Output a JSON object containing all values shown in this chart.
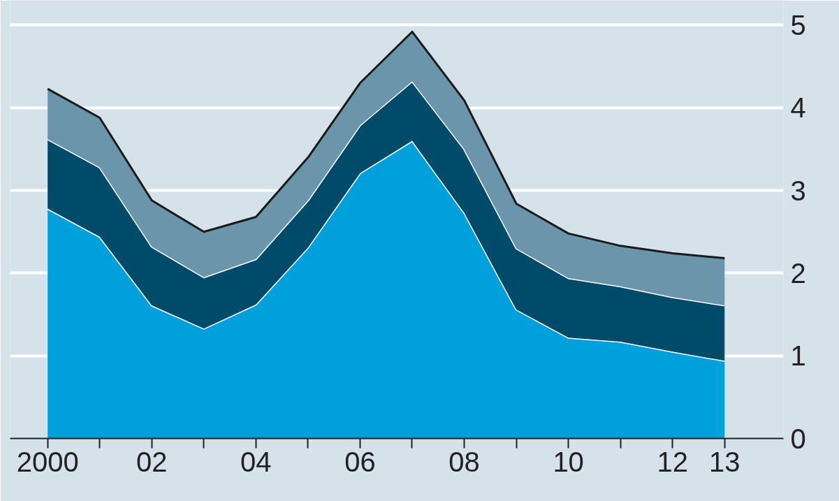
{
  "chart_data": {
    "type": "area",
    "stacked": true,
    "x": [
      2000,
      2001,
      2002,
      2003,
      2004,
      2005,
      2006,
      2007,
      2008,
      2009,
      2010,
      2011,
      2012,
      2013
    ],
    "series": [
      {
        "color": "#00a0dc",
        "values": [
          2.78,
          2.44,
          1.61,
          1.33,
          1.62,
          2.31,
          3.21,
          3.6,
          2.73,
          1.56,
          1.22,
          1.17,
          1.05,
          0.94
        ]
      },
      {
        "color": "#004a6a",
        "values": [
          0.84,
          0.84,
          0.71,
          0.62,
          0.55,
          0.57,
          0.58,
          0.72,
          0.77,
          0.74,
          0.72,
          0.67,
          0.66,
          0.67
        ]
      },
      {
        "color": "#6a95ab",
        "values": [
          0.61,
          0.6,
          0.56,
          0.55,
          0.51,
          0.52,
          0.51,
          0.6,
          0.59,
          0.54,
          0.54,
          0.49,
          0.53,
          0.57
        ]
      }
    ],
    "xlim": [
      1999.28,
      2014.13
    ],
    "xticks": [
      2000,
      {
        "value": 2001,
        "label": null
      },
      {
        "value": 2002,
        "label": "02"
      },
      {
        "value": 2003,
        "label": null
      },
      {
        "value": 2004,
        "label": "04"
      },
      {
        "value": 2005,
        "label": null
      },
      {
        "value": 2006,
        "label": "06"
      },
      {
        "value": 2007,
        "label": null
      },
      {
        "value": 2008,
        "label": "08"
      },
      {
        "value": 2009,
        "label": null
      },
      {
        "value": 2010,
        "label": "10"
      },
      {
        "value": 2011,
        "label": null
      },
      {
        "value": 2012,
        "label": "12"
      },
      {
        "value": 2013,
        "label": "13"
      }
    ],
    "ylim": [
      0,
      5.3
    ],
    "yticks": [
      0,
      1,
      2,
      3,
      4,
      5
    ],
    "grid": "y"
  }
}
